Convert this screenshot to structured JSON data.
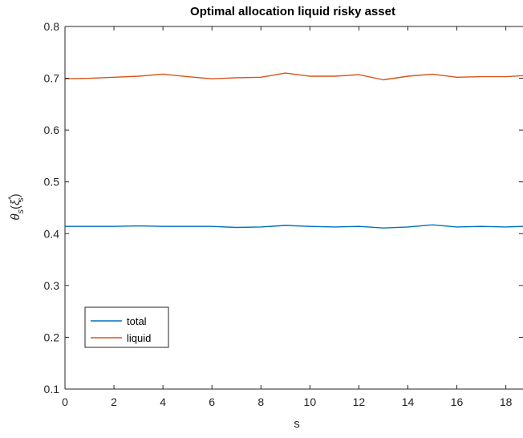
{
  "chart_data": {
    "type": "line",
    "title": "Optimal allocation liquid risky asset",
    "xlabel": "s",
    "ylabel_main": "θ",
    "ylabel_sub": "s",
    "ylabel_paren_open": "(",
    "ylabel_xi": "ξ",
    "ylabel_xi_sup": "*",
    "ylabel_xi_sub": "s",
    "ylabel_paren_close": ")",
    "xlim": [
      0,
      18.7
    ],
    "ylim": [
      0.1,
      0.8
    ],
    "xticks": [
      "0",
      "2",
      "4",
      "6",
      "8",
      "10",
      "12",
      "14",
      "16",
      "18"
    ],
    "yticks": [
      "0.1",
      "0.2",
      "0.3",
      "0.4",
      "0.5",
      "0.6",
      "0.7",
      "0.8"
    ],
    "grid": false,
    "legend_position": "lower-left",
    "series": [
      {
        "name": "total",
        "color": "#0072BD",
        "x": [
          0,
          1,
          2,
          3,
          4,
          5,
          6,
          7,
          8,
          9,
          10,
          11,
          12,
          13,
          14,
          15,
          16,
          17,
          18,
          18.7
        ],
        "y": [
          0.414,
          0.414,
          0.414,
          0.415,
          0.414,
          0.414,
          0.414,
          0.412,
          0.413,
          0.416,
          0.414,
          0.413,
          0.414,
          0.411,
          0.413,
          0.417,
          0.413,
          0.414,
          0.413,
          0.414
        ]
      },
      {
        "name": "liquid",
        "color": "#D95319",
        "x": [
          0,
          1,
          2,
          3,
          4,
          5,
          6,
          7,
          8,
          9,
          10,
          11,
          12,
          13,
          14,
          15,
          16,
          17,
          18,
          18.7
        ],
        "y": [
          0.699,
          0.7,
          0.702,
          0.704,
          0.708,
          0.703,
          0.699,
          0.701,
          0.702,
          0.71,
          0.704,
          0.704,
          0.707,
          0.697,
          0.704,
          0.708,
          0.702,
          0.703,
          0.703,
          0.705
        ]
      }
    ]
  }
}
